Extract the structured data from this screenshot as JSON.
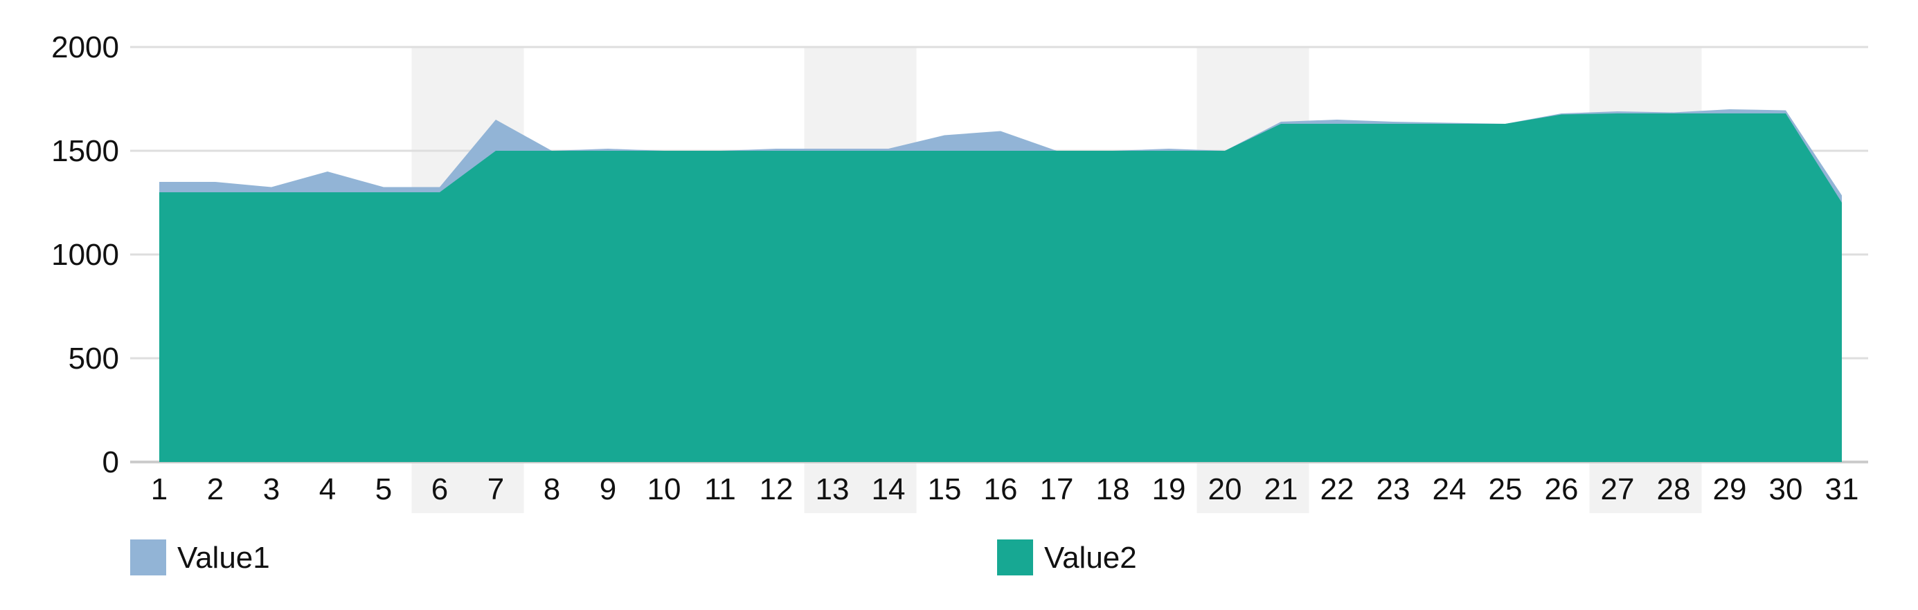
{
  "chart_data": {
    "type": "area",
    "x": [
      "1",
      "2",
      "3",
      "4",
      "5",
      "6",
      "7",
      "8",
      "9",
      "10",
      "11",
      "12",
      "13",
      "14",
      "15",
      "16",
      "17",
      "18",
      "19",
      "20",
      "21",
      "22",
      "23",
      "24",
      "25",
      "26",
      "27",
      "28",
      "29",
      "30",
      "31"
    ],
    "weekend_days": [
      "6",
      "7",
      "13",
      "14",
      "20",
      "21",
      "27",
      "28"
    ],
    "ylim": [
      0,
      2000
    ],
    "yticks": [
      0,
      500,
      1000,
      1500,
      2000
    ],
    "grid": true,
    "legend_position": "bottom",
    "series": [
      {
        "name": "Value1",
        "color": "#92B4D6",
        "values": [
          1350,
          1350,
          1325,
          1400,
          1325,
          1325,
          1650,
          1500,
          1510,
          1500,
          1500,
          1510,
          1510,
          1510,
          1575,
          1595,
          1500,
          1500,
          1510,
          1500,
          1640,
          1650,
          1640,
          1635,
          1630,
          1680,
          1690,
          1685,
          1700,
          1695,
          1285
        ]
      },
      {
        "name": "Value2",
        "color": "#17A893",
        "values": [
          1300,
          1300,
          1300,
          1300,
          1300,
          1300,
          1500,
          1500,
          1500,
          1500,
          1500,
          1500,
          1500,
          1500,
          1500,
          1500,
          1500,
          1500,
          1500,
          1500,
          1630,
          1630,
          1630,
          1630,
          1630,
          1675,
          1680,
          1680,
          1680,
          1680,
          1250
        ]
      }
    ]
  }
}
